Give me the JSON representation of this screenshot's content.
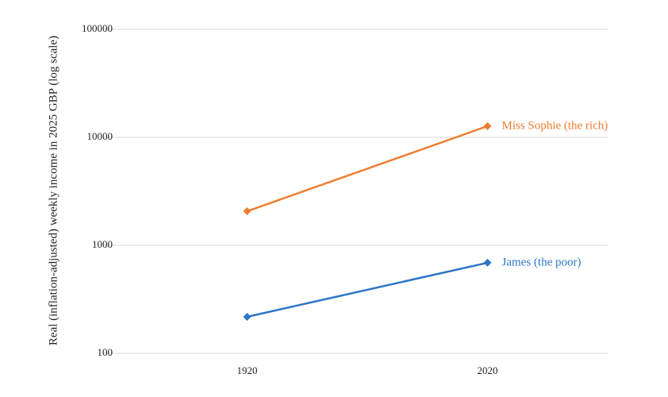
{
  "chart_data": {
    "type": "line",
    "y_label": "Real (inflation-adjusted) weekly income in 2025 GBP (log scale)",
    "categories": [
      "1920",
      "2020"
    ],
    "series": [
      {
        "name": "Miss Sophie (the rich)",
        "color": "#ed7d31",
        "values": [
          2070,
          12700
        ]
      },
      {
        "name": "James (the poor)",
        "color": "#2e75c6",
        "values": [
          218,
          690
        ]
      }
    ],
    "ylim": [
      100,
      100000
    ],
    "yticks": [
      100,
      1000,
      10000,
      100000
    ],
    "log_scale": true,
    "grid": true,
    "legend": "end-labels"
  }
}
